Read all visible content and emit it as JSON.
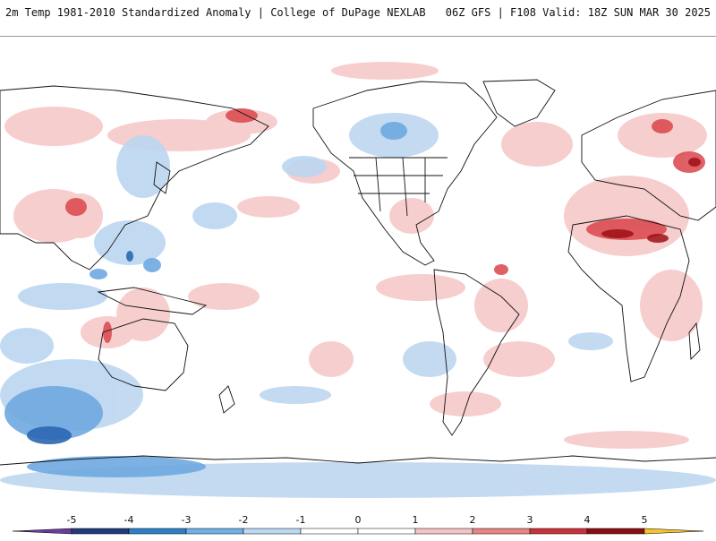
{
  "header": {
    "title_left": "2m Temp 1981-2010 Standardized Anomaly | College of DuPage NEXLAB",
    "title_right": "06Z GFS | F108 Valid: 18Z SUN MAR 30 2025"
  },
  "colorbar": {
    "ticks": [
      "-5",
      "-4",
      "-3",
      "-2",
      "-1",
      "0",
      "1",
      "2",
      "3",
      "4",
      "5"
    ],
    "colors": [
      "#6a3d9a",
      "#223a78",
      "#2f7fc4",
      "#6fb0e6",
      "#bcd8f2",
      "#ffffff",
      "#ffffff",
      "#f4c4c4",
      "#e88484",
      "#c9323a",
      "#8a0d12",
      "#f4c430"
    ]
  },
  "map": {
    "land_color": "#ffffff",
    "coast_color": "#111111",
    "warm_color": "#f3b8b8",
    "cold_color": "#a9c9ea"
  }
}
